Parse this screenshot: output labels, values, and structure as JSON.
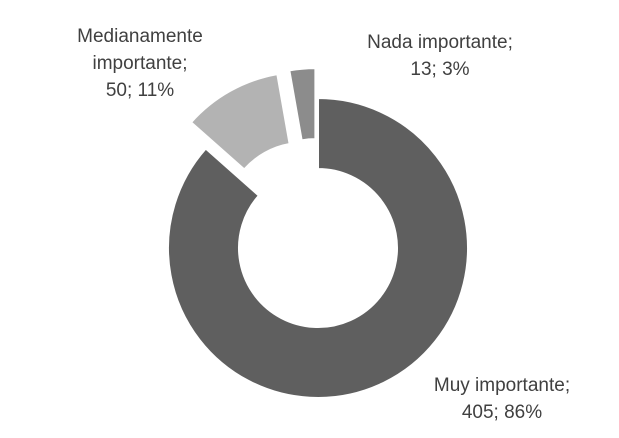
{
  "chart_data": {
    "type": "pie",
    "variant": "donut",
    "exploded": true,
    "categories": [
      "Muy importante",
      "Medianamente importante",
      "Nada importante"
    ],
    "values": [
      405,
      50,
      13
    ],
    "percent": [
      86,
      11,
      3
    ],
    "colors": [
      "#5f5f5f",
      "#b3b3b3",
      "#8c8c8c"
    ],
    "labels": [
      {
        "lines": [
          "Muy importante;",
          "405; 86%"
        ]
      },
      {
        "lines": [
          "Medianamente",
          "importante;",
          "50; 11%"
        ]
      },
      {
        "lines": [
          "Nada importante;",
          "13; 3%"
        ]
      }
    ],
    "legend": "none"
  }
}
